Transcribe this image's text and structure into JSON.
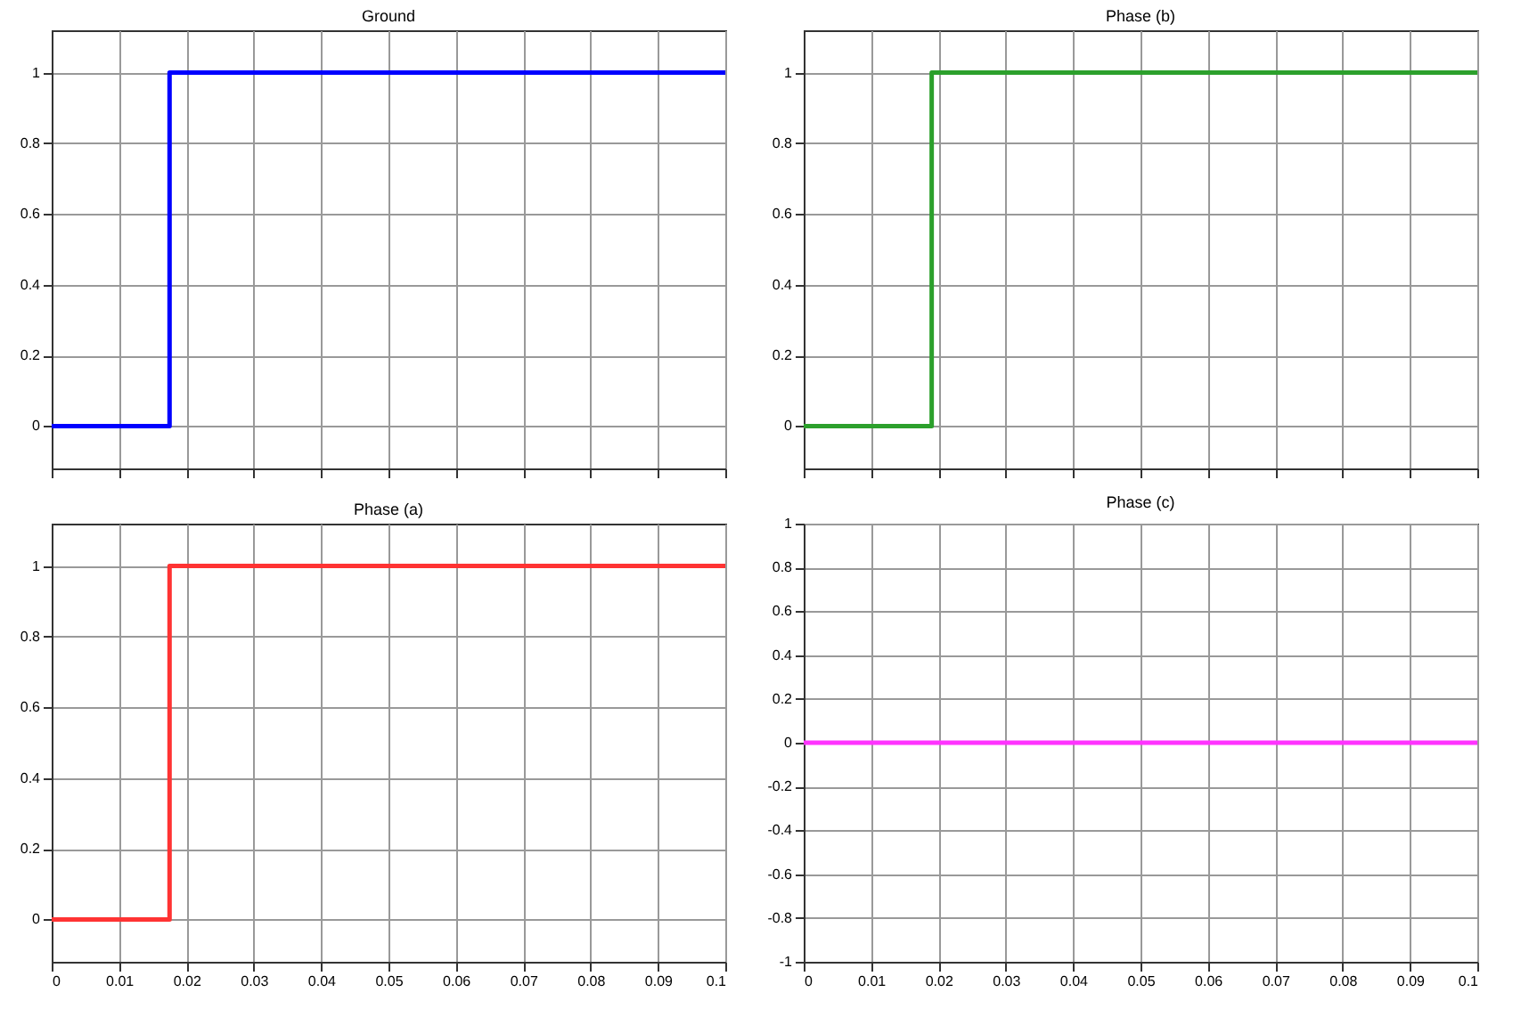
{
  "chart_data": [
    {
      "type": "step",
      "title": "Ground",
      "x": [
        0,
        0.0175,
        0.1
      ],
      "series": [
        {
          "color": "#0000ff",
          "values": [
            0,
            1,
            1
          ]
        }
      ],
      "xlim": [
        0,
        0.1
      ],
      "xticks": [
        0,
        0.01,
        0.02,
        0.03,
        0.04,
        0.05,
        0.06,
        0.07,
        0.08,
        0.09,
        0.1
      ],
      "ylim": [
        -0.12,
        1.12
      ],
      "yticks": [
        0,
        0.2,
        0.4,
        0.6,
        0.8,
        1
      ],
      "grid": true,
      "tick_labels": "y"
    },
    {
      "type": "step",
      "title": "Phase (b)",
      "x": [
        0,
        0.019,
        0.1
      ],
      "series": [
        {
          "color": "#2ca02c",
          "values": [
            0,
            1,
            1
          ]
        }
      ],
      "xlim": [
        0,
        0.1
      ],
      "xticks": [
        0,
        0.01,
        0.02,
        0.03,
        0.04,
        0.05,
        0.06,
        0.07,
        0.08,
        0.09,
        0.1
      ],
      "ylim": [
        -0.12,
        1.12
      ],
      "yticks": [
        0,
        0.2,
        0.4,
        0.6,
        0.8,
        1
      ],
      "grid": true,
      "tick_labels": "y"
    },
    {
      "type": "step",
      "title": "Phase (a)",
      "x": [
        0,
        0.0175,
        0.1
      ],
      "series": [
        {
          "color": "#ff3333",
          "values": [
            0,
            1,
            1
          ]
        }
      ],
      "xlim": [
        0,
        0.1
      ],
      "xticks": [
        0,
        0.01,
        0.02,
        0.03,
        0.04,
        0.05,
        0.06,
        0.07,
        0.08,
        0.09,
        0.1
      ],
      "ylim": [
        -0.12,
        1.12
      ],
      "yticks": [
        0,
        0.2,
        0.4,
        0.6,
        0.8,
        1
      ],
      "grid": true
    },
    {
      "type": "step",
      "title": "Phase (c)",
      "x": [
        0,
        0.1
      ],
      "series": [
        {
          "color": "#ff33ff",
          "values": [
            0,
            0
          ]
        }
      ],
      "xlim": [
        0,
        0.1
      ],
      "xticks": [
        0,
        0.01,
        0.02,
        0.03,
        0.04,
        0.05,
        0.06,
        0.07,
        0.08,
        0.09,
        0.1
      ],
      "ylim": [
        -1,
        1
      ],
      "yticks": [
        -1,
        -0.8,
        -0.6,
        -0.4,
        -0.2,
        0,
        0.2,
        0.4,
        0.6,
        0.8,
        1
      ],
      "grid": true
    }
  ]
}
